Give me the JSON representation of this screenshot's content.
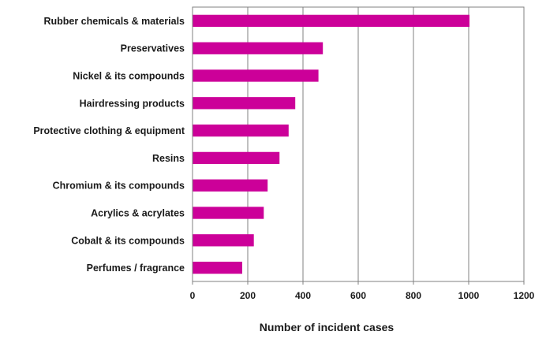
{
  "chart_data": {
    "type": "bar",
    "orientation": "horizontal",
    "categories": [
      "Rubber chemicals & materials",
      "Preservatives",
      "Nickel & its compounds",
      "Hairdressing products",
      "Protective clothing & equipment",
      "Resins",
      "Chromium & its compounds",
      "Acrylics & acrylates",
      "Cobalt & its compounds",
      "Perfumes / fragrance"
    ],
    "values": [
      1003,
      472,
      456,
      372,
      348,
      315,
      272,
      258,
      222,
      180
    ],
    "xlabel": "Number of incident cases",
    "ylabel": "",
    "xlim": [
      0,
      1200
    ],
    "xticks": [
      "0",
      "200",
      "400",
      "600",
      "800",
      "1000",
      "1200"
    ],
    "grid": "vertical",
    "legend": "none",
    "colors": {
      "bar": "#cc0099",
      "grid": "#808080",
      "frame": "#808080"
    }
  }
}
